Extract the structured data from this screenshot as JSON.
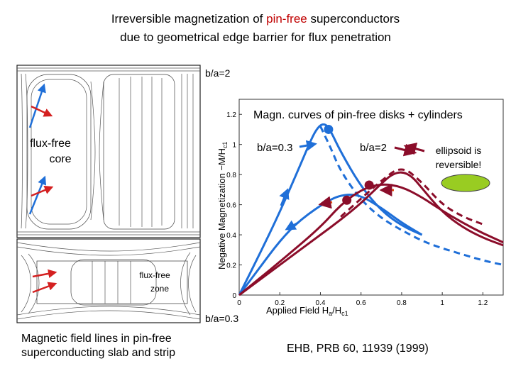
{
  "title": {
    "line1_prefix": "Irreversible magnetization of ",
    "line1_highlight": "pin-free",
    "line1_suffix": " superconductors",
    "line2": "due to geometrical edge barrier for flux penetration"
  },
  "left_panel": {
    "top_label": "b/a=2",
    "bottom_label": "b/a=0.3",
    "core_label_line1": "flux-free",
    "core_label_line2": "core",
    "zone_label_line1": "flux-free",
    "zone_label_line2": "zone",
    "caption_line1": "Magnetic field lines in pin-free",
    "caption_line2": "superconducting slab and strip"
  },
  "chart_data": {
    "type": "line",
    "title": "Magn. curves of pin-free disks + cylinders",
    "xlabel": "Applied Field  Ha/Hc1",
    "ylabel": "Negative Magnetization  -M/Hc1",
    "xlim": [
      0,
      1.3
    ],
    "ylim": [
      0,
      1.3
    ],
    "xticks": [
      "0",
      "0.2",
      "0.4",
      "0.6",
      "0.8",
      "1",
      "1.2"
    ],
    "yticks": [
      "0",
      "0.2",
      "0.4",
      "0.6",
      "0.8",
      "1",
      "1.2"
    ],
    "series": [
      {
        "name": "b/a=0.3 ascending",
        "color": "#1f6fd8",
        "style": "solid",
        "x": [
          0,
          0.1,
          0.2,
          0.3,
          0.35,
          0.38,
          0.41,
          0.44,
          0.5,
          0.6,
          0.7,
          0.8,
          0.9
        ],
        "y": [
          0,
          0.27,
          0.55,
          0.86,
          1.02,
          1.1,
          1.14,
          1.12,
          0.95,
          0.72,
          0.56,
          0.46,
          0.4
        ]
      },
      {
        "name": "b/a=0.3 descending",
        "color": "#1f6fd8",
        "style": "solid",
        "x": [
          0.9,
          0.8,
          0.7,
          0.6,
          0.53,
          0.45,
          0.3,
          0.2,
          0.1,
          0
        ],
        "y": [
          0.4,
          0.48,
          0.58,
          0.66,
          0.67,
          0.64,
          0.5,
          0.36,
          0.18,
          0
        ]
      },
      {
        "name": "b/a=0.3 ellipsoid",
        "color": "#1f6fd8",
        "style": "dashed",
        "x": [
          0.4,
          0.45,
          0.5,
          0.6,
          0.7,
          0.8,
          0.9,
          1.0,
          1.1,
          1.2,
          1.3
        ],
        "y": [
          1.12,
          0.98,
          0.82,
          0.63,
          0.51,
          0.43,
          0.36,
          0.31,
          0.27,
          0.23,
          0.2
        ]
      },
      {
        "name": "b/a=2 ascending",
        "color": "#8b0d2a",
        "style": "solid",
        "x": [
          0,
          0.2,
          0.4,
          0.5,
          0.6,
          0.7,
          0.75,
          0.8,
          0.85,
          0.9,
          1.0,
          1.1,
          1.2,
          1.3
        ],
        "y": [
          0,
          0.2,
          0.4,
          0.5,
          0.61,
          0.74,
          0.8,
          0.82,
          0.79,
          0.71,
          0.55,
          0.45,
          0.38,
          0.33
        ]
      },
      {
        "name": "b/a=2 descending",
        "color": "#8b0d2a",
        "style": "solid",
        "x": [
          1.3,
          1.2,
          1.1,
          1.0,
          0.9,
          0.8,
          0.7,
          0.6,
          0.5,
          0.4,
          0.2,
          0
        ],
        "y": [
          0.35,
          0.41,
          0.48,
          0.56,
          0.65,
          0.72,
          0.74,
          0.7,
          0.6,
          0.45,
          0.22,
          0
        ]
      },
      {
        "name": "b/a=2 ellipsoid",
        "color": "#8b0d2a",
        "style": "dashed",
        "x": [
          0.5,
          0.6,
          0.7,
          0.8,
          0.9,
          1.0,
          1.1,
          1.2
        ],
        "y": [
          0.52,
          0.64,
          0.76,
          0.86,
          0.75,
          0.6,
          0.52,
          0.47
        ]
      }
    ],
    "markers": [
      {
        "x": 0.44,
        "y": 1.1,
        "color": "#1f6fd8"
      },
      {
        "x": 0.64,
        "y": 0.73,
        "color": "#8b0d2a"
      },
      {
        "x": 0.53,
        "y": 0.63,
        "color": "#8b0d2a"
      }
    ]
  },
  "annotations": {
    "ba03": "b/a=0.3",
    "ba2": "b/a=2",
    "ellipsoid_line1": "ellipsoid is",
    "ellipsoid_line2": "reversible!"
  },
  "citation": "EHB, PRB 60, 11939 (1999)",
  "colors": {
    "title_highlight": "#c00000",
    "blue": "#1f6fd8",
    "dark_red": "#8b0d2a",
    "arrow_red": "#d42020",
    "arrow_orange": "#e04d10",
    "ellipse_green": "#99cc22"
  }
}
